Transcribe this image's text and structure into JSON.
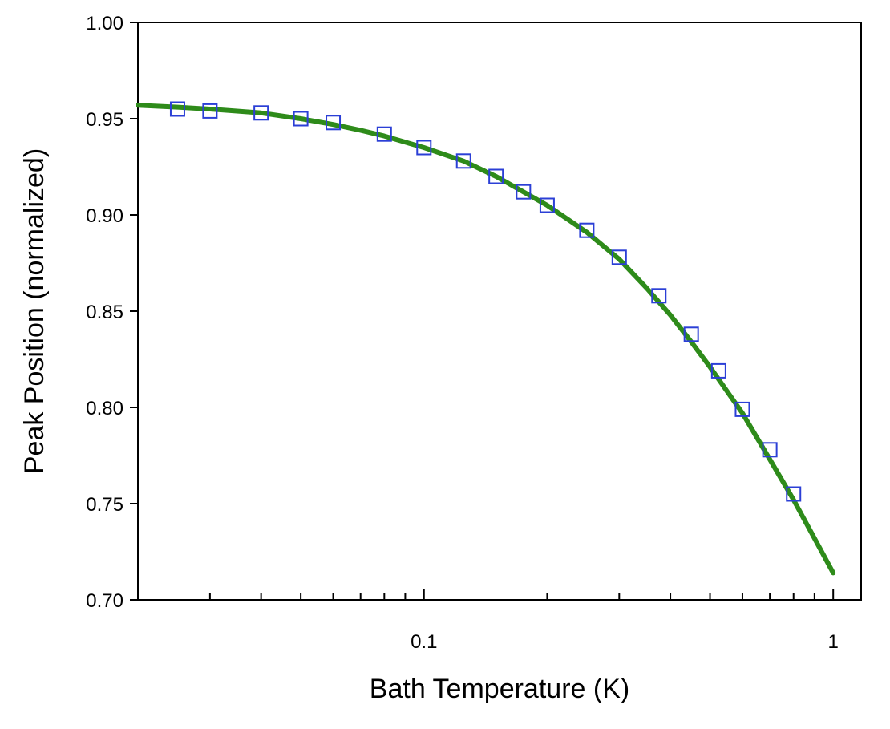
{
  "chart_data": {
    "type": "scatter",
    "title": "",
    "xlabel": "Bath Temperature  (K)",
    "ylabel": "Peak Position  (normalized)",
    "x_scale": "log",
    "xlim": [
      0.02,
      1.17
    ],
    "ylim": [
      0.7,
      1.0
    ],
    "grid": false,
    "legend": "none",
    "x_ticks": [
      {
        "value": 0.1,
        "label": "0.1"
      },
      {
        "value": 1,
        "label": "1"
      }
    ],
    "x_minor_ticks": [
      0.03,
      0.04,
      0.05,
      0.06,
      0.07,
      0.08,
      0.09,
      0.2,
      0.3,
      0.4,
      0.5,
      0.6,
      0.7,
      0.8,
      0.9
    ],
    "y_ticks": [
      {
        "value": 0.7,
        "label": "0.70"
      },
      {
        "value": 0.75,
        "label": "0.75"
      },
      {
        "value": 0.8,
        "label": "0.80"
      },
      {
        "value": 0.85,
        "label": "0.85"
      },
      {
        "value": 0.9,
        "label": "0.90"
      },
      {
        "value": 0.95,
        "label": "0.95"
      },
      {
        "value": 1.0,
        "label": "1.00"
      }
    ],
    "series": [
      {
        "kind": "markers",
        "marker": "open-square",
        "color": "#2b3fd6",
        "x": [
          0.025,
          0.03,
          0.04,
          0.05,
          0.06,
          0.08,
          0.1,
          0.125,
          0.15,
          0.175,
          0.2,
          0.25,
          0.3,
          0.375,
          0.45,
          0.525,
          0.6,
          0.7,
          0.8
        ],
        "y": [
          0.955,
          0.954,
          0.953,
          0.95,
          0.948,
          0.942,
          0.935,
          0.928,
          0.92,
          0.912,
          0.905,
          0.892,
          0.878,
          0.858,
          0.838,
          0.819,
          0.799,
          0.778,
          0.755
        ]
      },
      {
        "kind": "line",
        "color": "#2e8b1a",
        "x": [
          0.02,
          0.025,
          0.03,
          0.04,
          0.05,
          0.06,
          0.07,
          0.08,
          0.1,
          0.125,
          0.15,
          0.175,
          0.2,
          0.25,
          0.3,
          0.35,
          0.4,
          0.45,
          0.5,
          0.6,
          0.7,
          0.8,
          0.9,
          1.0
        ],
        "y": [
          0.957,
          0.956,
          0.955,
          0.953,
          0.95,
          0.947,
          0.944,
          0.941,
          0.935,
          0.928,
          0.92,
          0.912,
          0.905,
          0.891,
          0.877,
          0.862,
          0.848,
          0.834,
          0.821,
          0.797,
          0.773,
          0.752,
          0.732,
          0.714
        ]
      }
    ]
  }
}
